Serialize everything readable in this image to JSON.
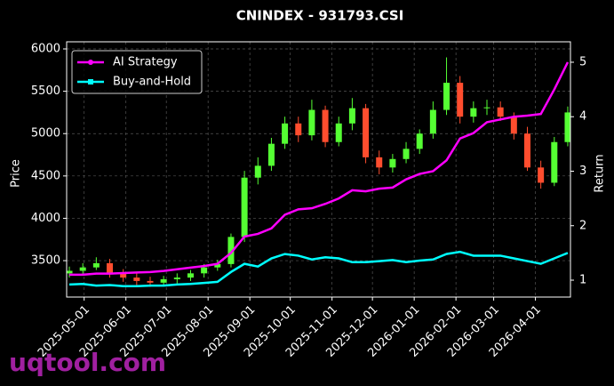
{
  "chart_data": {
    "type": "candlestick",
    "title": "CNINDEX - 931793.CSI",
    "ylabel": "Price",
    "y2label": "Return",
    "watermark": "uqtool.com",
    "grid": true,
    "legend": "upper left",
    "x": [
      "2025-04-20",
      "2025-04-30",
      "2025-05-10",
      "2025-05-20",
      "2025-05-30",
      "2025-06-09",
      "2025-06-19",
      "2025-06-29",
      "2025-07-09",
      "2025-07-19",
      "2025-07-29",
      "2025-08-08",
      "2025-08-18",
      "2025-08-28",
      "2025-09-07",
      "2025-09-17",
      "2025-09-27",
      "2025-10-07",
      "2025-10-17",
      "2025-10-27",
      "2025-11-06",
      "2025-11-16",
      "2025-11-26",
      "2025-12-06",
      "2025-12-16",
      "2025-12-26",
      "2026-01-05",
      "2026-01-15",
      "2026-01-25",
      "2026-02-04",
      "2026-02-14",
      "2026-02-24",
      "2026-03-06",
      "2026-03-16",
      "2026-03-26",
      "2026-04-05",
      "2026-04-15",
      "2026-04-25"
    ],
    "candles": {
      "up_color": "#55ff33",
      "down_color": "#ff4d2e",
      "open": [
        3350,
        3380,
        3420,
        3470,
        3350,
        3300,
        3260,
        3240,
        3280,
        3300,
        3350,
        3420,
        3460,
        3780,
        4480,
        4620,
        4880,
        5120,
        4980,
        5280,
        4900,
        5120,
        5300,
        4720,
        4600,
        4700,
        4820,
        5000,
        5280,
        5600,
        5200,
        5300,
        5310,
        5200,
        5000,
        4600,
        4420,
        4900
      ],
      "high": [
        3430,
        3470,
        3540,
        3520,
        3400,
        3350,
        3310,
        3320,
        3350,
        3390,
        3460,
        3510,
        3820,
        4560,
        4720,
        4950,
        5200,
        5200,
        5400,
        5330,
        5200,
        5420,
        5350,
        4800,
        4760,
        4900,
        5050,
        5380,
        5900,
        5680,
        5380,
        5400,
        5380,
        5250,
        5080,
        4680,
        4960,
        5320
      ],
      "low": [
        3300,
        3330,
        3390,
        3300,
        3250,
        3210,
        3190,
        3200,
        3230,
        3260,
        3300,
        3380,
        3420,
        3720,
        4400,
        4560,
        4820,
        4900,
        4920,
        4840,
        4850,
        5040,
        4650,
        4520,
        4540,
        4650,
        4760,
        4940,
        5220,
        5120,
        5130,
        5220,
        5150,
        4930,
        4560,
        4350,
        4380,
        4850
      ],
      "close": [
        3380,
        3420,
        3470,
        3350,
        3300,
        3260,
        3240,
        3280,
        3300,
        3350,
        3420,
        3460,
        3780,
        4480,
        4620,
        4880,
        5120,
        4980,
        5280,
        4900,
        5120,
        5300,
        4720,
        4600,
        4700,
        4820,
        5000,
        5280,
        5600,
        5200,
        5300,
        5310,
        5200,
        5000,
        4600,
        4420,
        4900,
        5250
      ]
    },
    "series": [
      {
        "name": "AI Strategy",
        "color": "#ff00ff",
        "marker": "circle",
        "axis": "y2",
        "values": [
          1.1,
          1.1,
          1.12,
          1.12,
          1.13,
          1.14,
          1.15,
          1.17,
          1.2,
          1.23,
          1.26,
          1.3,
          1.5,
          1.8,
          1.85,
          1.95,
          2.2,
          2.3,
          2.32,
          2.4,
          2.5,
          2.65,
          2.63,
          2.68,
          2.7,
          2.85,
          2.95,
          3.0,
          3.2,
          3.6,
          3.7,
          3.9,
          3.95,
          4.0,
          4.02,
          4.05,
          4.5,
          5.0
        ]
      },
      {
        "name": "Buy-and-Hold",
        "color": "#00ffff",
        "marker": "square",
        "axis": "y2",
        "values": [
          0.92,
          0.93,
          0.9,
          0.91,
          0.89,
          0.89,
          0.9,
          0.9,
          0.92,
          0.93,
          0.95,
          0.97,
          1.15,
          1.3,
          1.25,
          1.4,
          1.48,
          1.45,
          1.38,
          1.42,
          1.4,
          1.33,
          1.33,
          1.35,
          1.37,
          1.33,
          1.36,
          1.38,
          1.48,
          1.52,
          1.45,
          1.45,
          1.45,
          1.4,
          1.35,
          1.3,
          1.4,
          1.5
        ]
      }
    ],
    "xlim": [
      "2025-04-18",
      "2026-04-27"
    ],
    "xticks": [
      "2025-05-01",
      "2025-06-01",
      "2025-07-01",
      "2025-08-01",
      "2025-09-01",
      "2025-10-01",
      "2025-11-01",
      "2025-12-01",
      "2026-01-01",
      "2026-02-01",
      "2026-03-01",
      "2026-04-01"
    ],
    "ylim": [
      3070,
      6084
    ],
    "yticks": [
      3500,
      4000,
      4500,
      5000,
      5500,
      6000
    ],
    "y2lim": [
      0.69,
      5.375
    ],
    "y2ticks": [
      1,
      2,
      3,
      4,
      5
    ]
  }
}
